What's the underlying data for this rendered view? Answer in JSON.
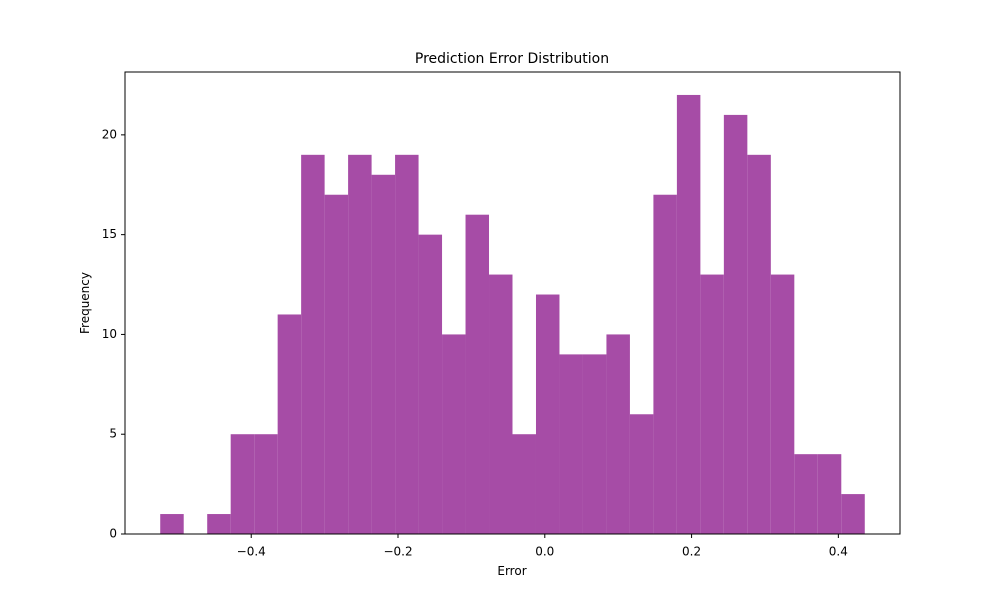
{
  "chart_data": {
    "type": "histogram",
    "title": "Prediction Error Distribution",
    "xlabel": "Error",
    "ylabel": "Frequency",
    "bins": [
      -0.524,
      -0.492,
      -0.46,
      -0.428,
      -0.396,
      -0.364,
      -0.332,
      -0.3,
      -0.268,
      -0.236,
      -0.204,
      -0.172,
      -0.14,
      -0.108,
      -0.076,
      -0.044,
      -0.012,
      0.02,
      0.052,
      0.084,
      0.116,
      0.148,
      0.18,
      0.212,
      0.244,
      0.276,
      0.308,
      0.34,
      0.372,
      0.404,
      0.436
    ],
    "values": [
      1,
      0,
      1,
      5,
      5,
      11,
      19,
      17,
      19,
      18,
      19,
      15,
      10,
      16,
      13,
      5,
      12,
      9,
      9,
      10,
      6,
      17,
      22,
      13,
      21,
      19,
      13,
      4,
      4,
      2
    ],
    "color": "#a64ca6",
    "xlim": [
      -0.572,
      0.484
    ],
    "xticks": [
      {
        "value": -0.4,
        "label": "−0.4"
      },
      {
        "value": -0.2,
        "label": "−0.2"
      },
      {
        "value": 0.0,
        "label": "0.0"
      },
      0.2,
      0.4
    ],
    "ylim": [
      0,
      23.15
    ],
    "yticks": [
      0,
      5,
      10,
      15,
      20
    ]
  }
}
